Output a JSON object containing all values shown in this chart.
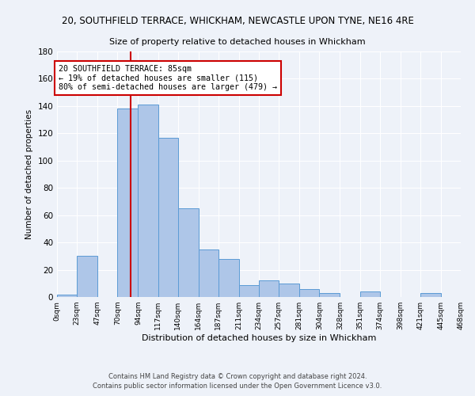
{
  "title_line1": "20, SOUTHFIELD TERRACE, WHICKHAM, NEWCASTLE UPON TYNE, NE16 4RE",
  "title_line2": "Size of property relative to detached houses in Whickham",
  "xlabel": "Distribution of detached houses by size in Whickham",
  "ylabel": "Number of detached properties",
  "bin_edges": [
    0,
    23,
    47,
    70,
    94,
    117,
    140,
    164,
    187,
    211,
    234,
    257,
    281,
    304,
    328,
    351,
    374,
    398,
    421,
    445,
    468
  ],
  "counts": [
    2,
    30,
    0,
    138,
    141,
    117,
    65,
    35,
    28,
    9,
    12,
    10,
    6,
    3,
    0,
    4,
    0,
    0,
    3,
    0
  ],
  "bar_color": "#aec6e8",
  "bar_edge_color": "#5b9bd5",
  "vline_color": "#cc0000",
  "vline_x": 85,
  "annotation_text": "20 SOUTHFIELD TERRACE: 85sqm\n← 19% of detached houses are smaller (115)\n80% of semi-detached houses are larger (479) →",
  "annotation_box_color": "#ffffff",
  "annotation_box_edge_color": "#cc0000",
  "ylim": [
    0,
    180
  ],
  "yticks": [
    0,
    20,
    40,
    60,
    80,
    100,
    120,
    140,
    160,
    180
  ],
  "tick_labels": [
    "0sqm",
    "23sqm",
    "47sqm",
    "70sqm",
    "94sqm",
    "117sqm",
    "140sqm",
    "164sqm",
    "187sqm",
    "211sqm",
    "234sqm",
    "257sqm",
    "281sqm",
    "304sqm",
    "328sqm",
    "351sqm",
    "374sqm",
    "398sqm",
    "421sqm",
    "445sqm",
    "468sqm"
  ],
  "footnote1": "Contains HM Land Registry data © Crown copyright and database right 2024.",
  "footnote2": "Contains public sector information licensed under the Open Government Licence v3.0.",
  "bg_color": "#eef2f9",
  "grid_color": "#ffffff"
}
